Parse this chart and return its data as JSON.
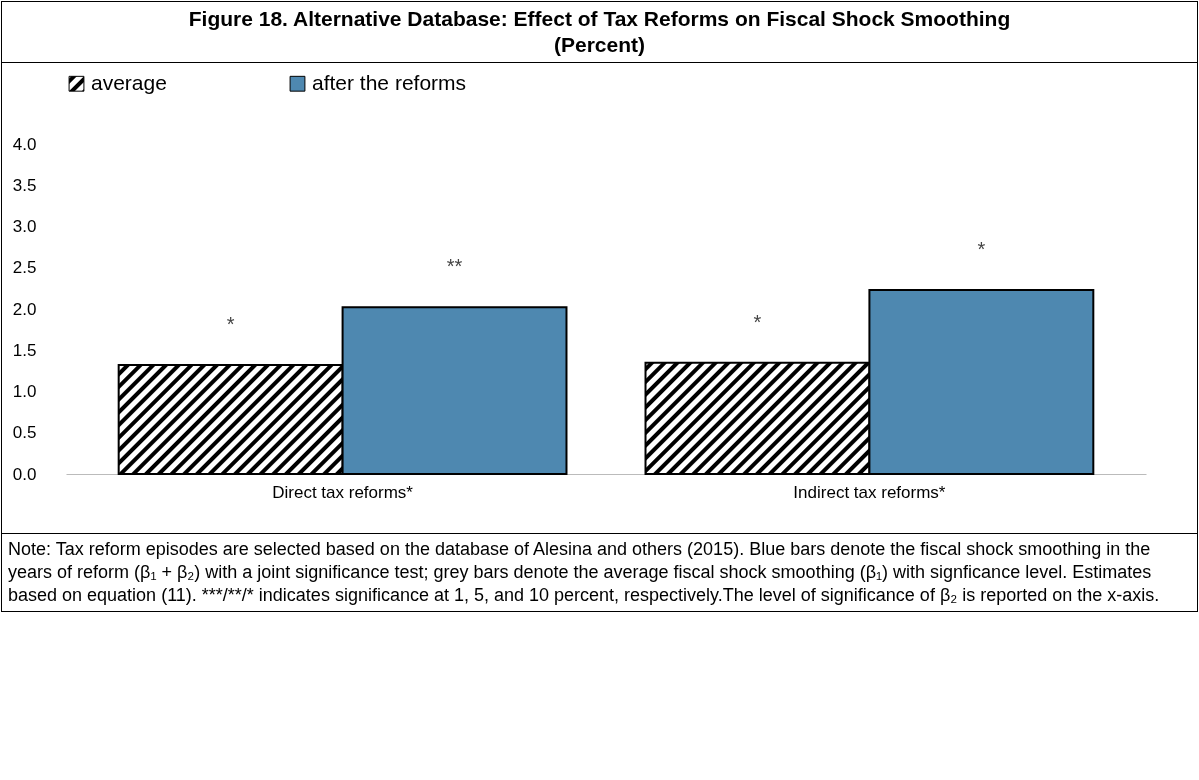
{
  "chart_data": {
    "type": "bar",
    "title": "Figure 18. Alternative Database: Effect of Tax Reforms on Fiscal Shock Smoothing",
    "subtitle": "(Percent)",
    "categories": [
      "Direct tax reforms*",
      "Indirect tax reforms*"
    ],
    "series": [
      {
        "name": "average",
        "color": "#000000",
        "values": [
          1.32,
          1.35
        ],
        "value_labels": [
          "*",
          "*"
        ]
      },
      {
        "name": "after the reforms",
        "color": "#4e88b0",
        "values": [
          2.02,
          2.23
        ],
        "value_labels": [
          "**",
          "*"
        ]
      }
    ],
    "ylim": [
      0,
      4
    ],
    "yticks": [
      {
        "value": 0,
        "label": "0.0"
      },
      {
        "value": 0.5,
        "label": "0.5"
      },
      {
        "value": 1,
        "label": "1.0"
      },
      {
        "value": 1.5,
        "label": "1.5"
      },
      {
        "value": 2,
        "label": "2.0"
      },
      {
        "value": 2.5,
        "label": "2.5"
      },
      {
        "value": 3,
        "label": "3.0"
      },
      {
        "value": 3.5,
        "label": "3.5"
      },
      {
        "value": 4,
        "label": "4.0"
      }
    ],
    "grid": false,
    "legend": "top",
    "annotations": [
      "Note: Tax reform episodes are selected based on the database of Alesina and others (2015). Blue bars denote the fiscal shock smoothing in the years of reform (β₁ + β₂) with a joint significance test; grey bars denote the average fiscal shock smoothing (β₁) with signficance level. Estimates based on equation (11). ***/**/* indicates significance at 1, 5, and 10 percent, respectively.The level of significance of β₂ is reported on the x-axis."
    ]
  }
}
